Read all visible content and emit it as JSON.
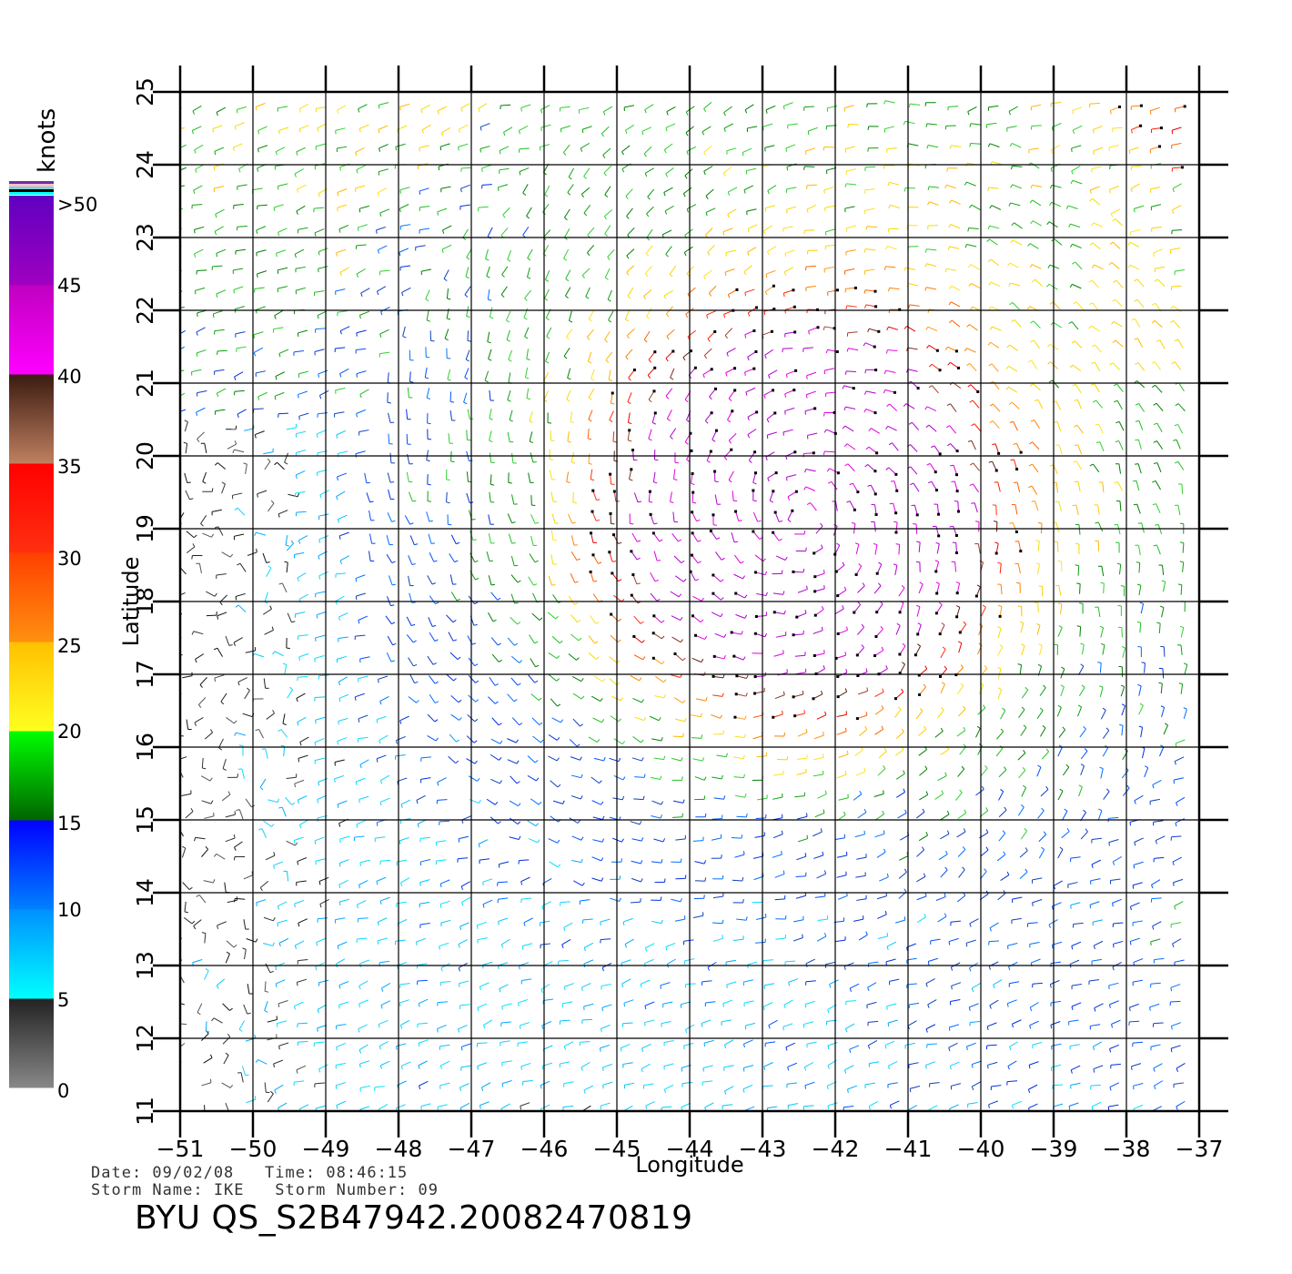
{
  "map": {
    "x_axis": {
      "label": "Longitude",
      "ticks": [
        -51,
        -50,
        -49,
        -48,
        -47,
        -46,
        -45,
        -44,
        -43,
        -42,
        -41,
        -40,
        -39,
        -38,
        -37
      ],
      "tick_labels": [
        "−51",
        "−50",
        "−49",
        "−48",
        "−47",
        "−46",
        "−45",
        "−44",
        "−43",
        "−42",
        "−41",
        "−40",
        "−39",
        "−38",
        "−37"
      ]
    },
    "y_axis": {
      "label": "Latitude",
      "ticks": [
        11,
        12,
        13,
        14,
        15,
        16,
        17,
        18,
        19,
        20,
        21,
        22,
        23,
        24,
        25
      ],
      "tick_labels": [
        "11",
        "12",
        "13",
        "14",
        "15",
        "16",
        "17",
        "18",
        "19",
        "20",
        "21",
        "22",
        "23",
        "24",
        "25"
      ]
    },
    "extent": {
      "lon": [
        -51,
        -37
      ],
      "lat": [
        11,
        25
      ]
    },
    "field": "QuikSCAT wind vectors, color-coded by speed",
    "storm_center": {
      "lon": -42.5,
      "lat": 19.2
    }
  },
  "colorbar": {
    "units_label": "knots",
    "labels": [
      ">50",
      "45",
      "40",
      "35",
      "30",
      "25",
      "20",
      "15",
      "10",
      "5",
      "0"
    ],
    "segments": [
      {
        "from": 0,
        "to": 5,
        "colors": [
          "#888888",
          "#222222"
        ]
      },
      {
        "from": 5,
        "to": 10,
        "colors": [
          "#00ffff",
          "#0090ff"
        ]
      },
      {
        "from": 10,
        "to": 15,
        "colors": [
          "#0080ff",
          "#0000ff"
        ]
      },
      {
        "from": 15,
        "to": 20,
        "colors": [
          "#006400",
          "#00ff00"
        ]
      },
      {
        "from": 20,
        "to": 25,
        "colors": [
          "#ffff20",
          "#ffc000"
        ]
      },
      {
        "from": 25,
        "to": 30,
        "colors": [
          "#ff9010",
          "#ff4000"
        ]
      },
      {
        "from": 30,
        "to": 35,
        "colors": [
          "#ff3010",
          "#ff0000"
        ]
      },
      {
        "from": 35,
        "to": 40,
        "colors": [
          "#c08060",
          "#3a1a10"
        ]
      },
      {
        "from": 40,
        "to": 45,
        "colors": [
          "#ff00ff",
          "#c000c0"
        ]
      },
      {
        "from": 45,
        "to": 50,
        "colors": [
          "#a000c0",
          "#6000c0"
        ]
      }
    ],
    "cap_colors": [
      "#7030a0",
      "#ffc0d0",
      "#80d0d0",
      "#000000",
      "#00ffff"
    ]
  },
  "info": {
    "line1": "Date: 09/02/08   Time: 08:46:15",
    "line2": "Storm Name: IKE   Storm Number: 09",
    "title": "BYU QS_S2B47942.20082470819"
  }
}
